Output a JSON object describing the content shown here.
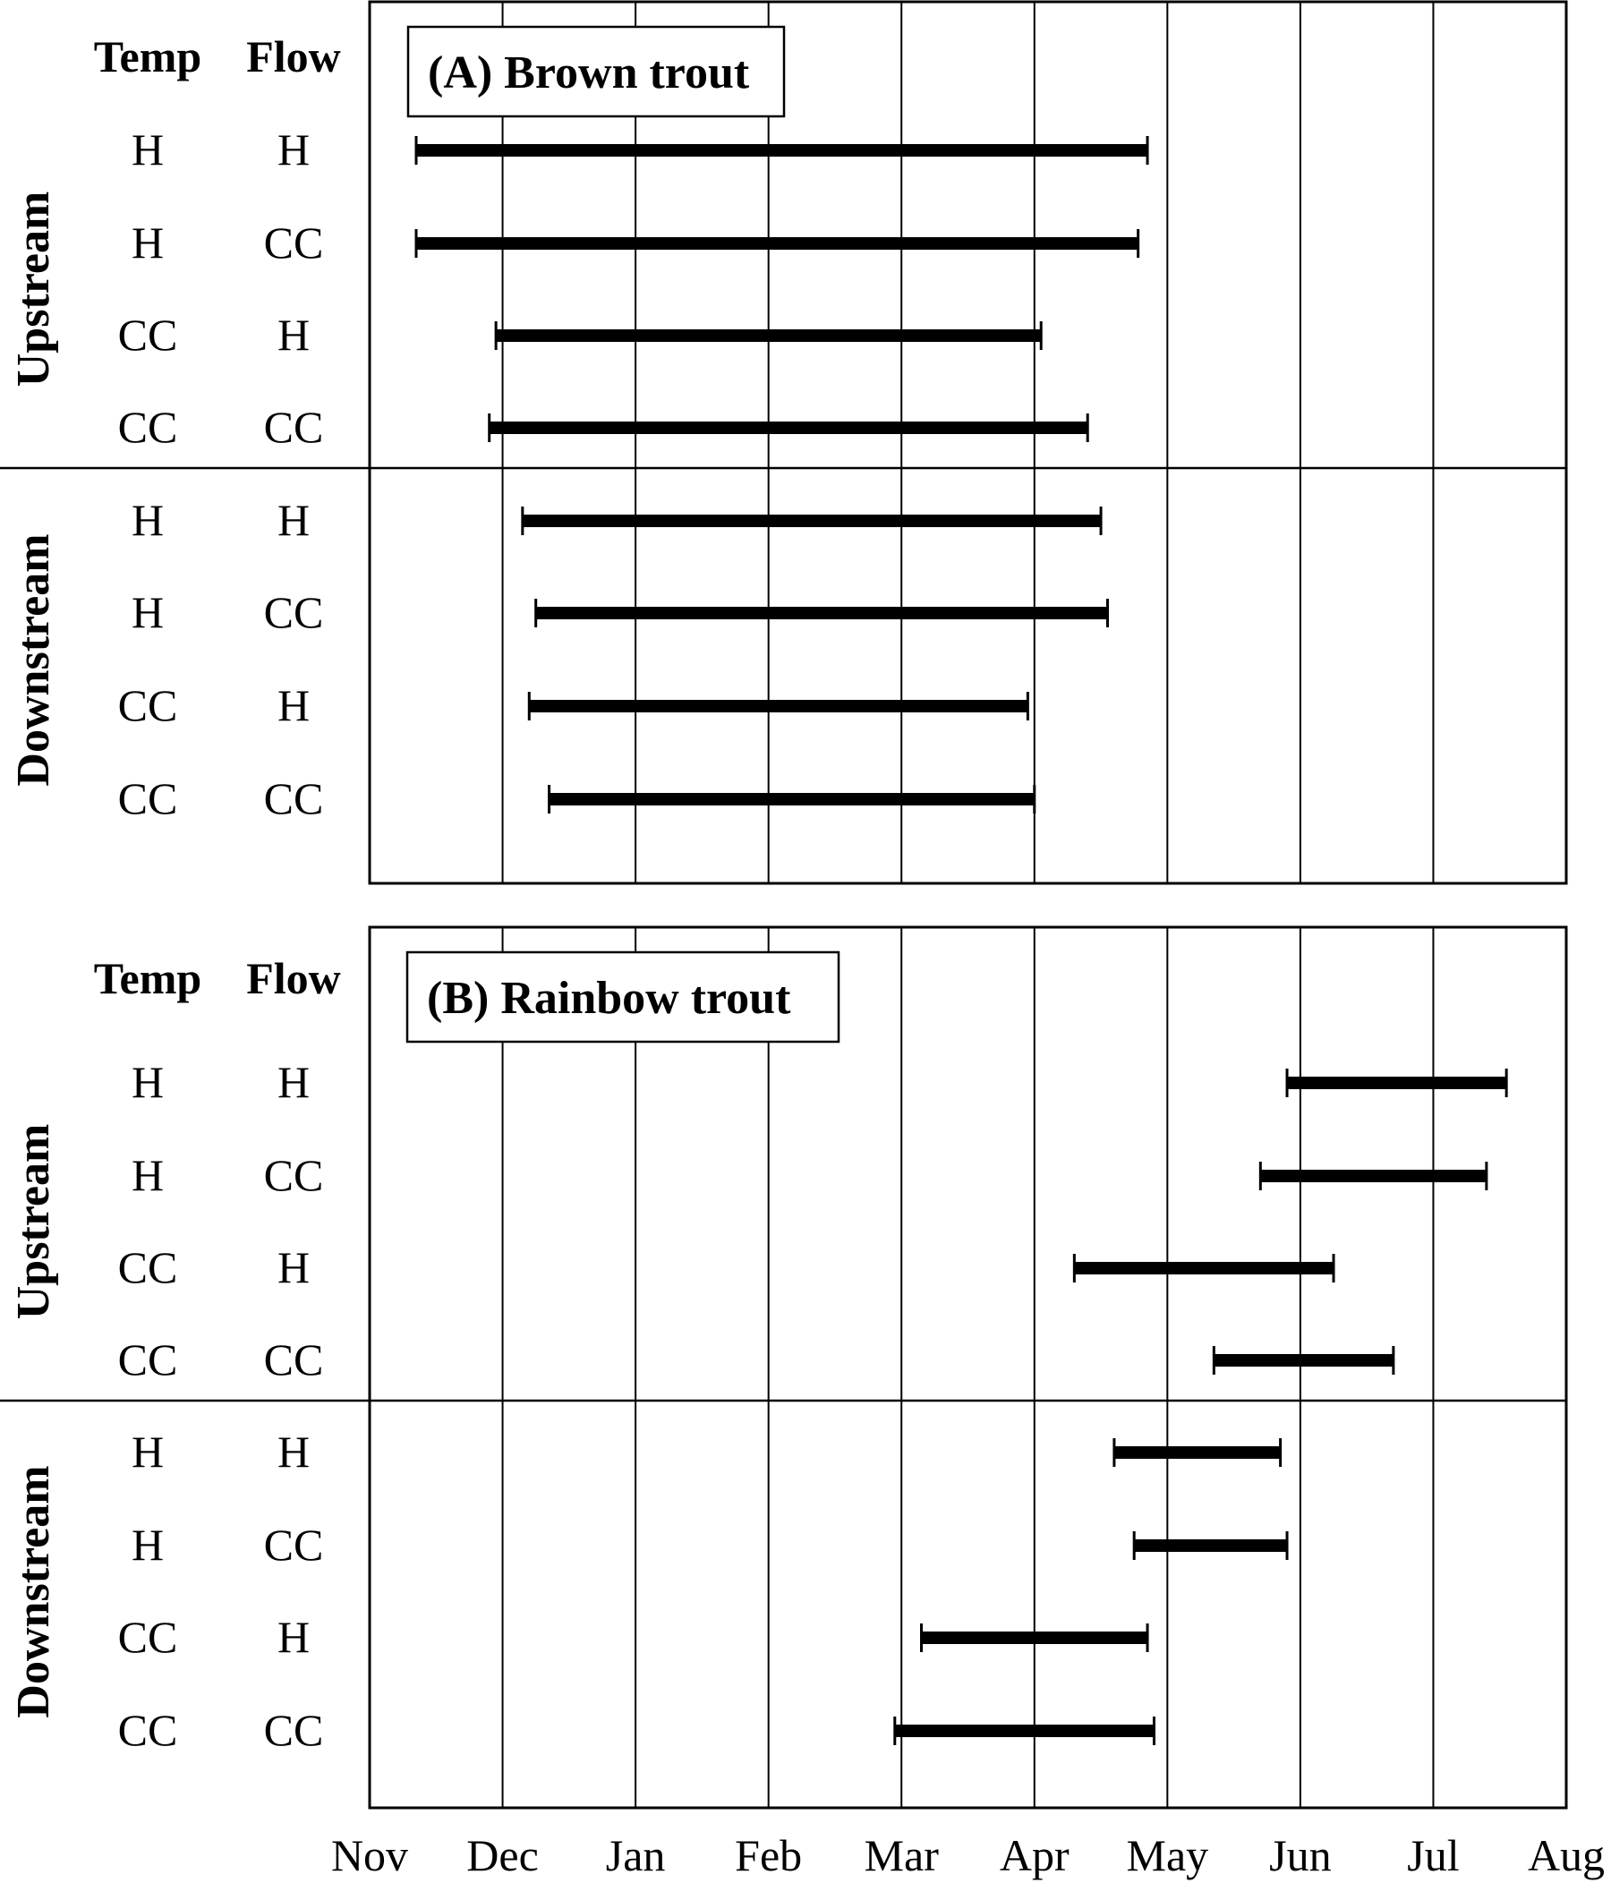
{
  "chart_data": {
    "type": "range-bar",
    "x_ticks": [
      "Nov",
      "Dec",
      "Jan",
      "Feb",
      "Mar",
      "Apr",
      "May",
      "Jun",
      "Jul",
      "Aug"
    ],
    "x_unit": "months from Nov 1",
    "xlim": [
      0,
      9
    ],
    "grid": "vertical",
    "column_headers": [
      "Temp",
      "Flow"
    ],
    "groups": [
      "Upstream",
      "Downstream"
    ],
    "panels": [
      {
        "title": "(A) Brown trout",
        "rows": [
          {
            "group": "Upstream",
            "temp": "H",
            "flow": "H",
            "start": 0.35,
            "end": 5.85
          },
          {
            "group": "Upstream",
            "temp": "H",
            "flow": "CC",
            "start": 0.35,
            "end": 5.78
          },
          {
            "group": "Upstream",
            "temp": "CC",
            "flow": "H",
            "start": 0.95,
            "end": 5.05
          },
          {
            "group": "Upstream",
            "temp": "CC",
            "flow": "CC",
            "start": 0.9,
            "end": 5.4
          },
          {
            "group": "Downstream",
            "temp": "H",
            "flow": "H",
            "start": 1.15,
            "end": 5.5
          },
          {
            "group": "Downstream",
            "temp": "H",
            "flow": "CC",
            "start": 1.25,
            "end": 5.55
          },
          {
            "group": "Downstream",
            "temp": "CC",
            "flow": "H",
            "start": 1.2,
            "end": 4.95
          },
          {
            "group": "Downstream",
            "temp": "CC",
            "flow": "CC",
            "start": 1.35,
            "end": 5.0
          }
        ]
      },
      {
        "title": "(B) Rainbow trout",
        "rows": [
          {
            "group": "Upstream",
            "temp": "H",
            "flow": "H",
            "start": 6.9,
            "end": 8.55
          },
          {
            "group": "Upstream",
            "temp": "H",
            "flow": "CC",
            "start": 6.7,
            "end": 8.4
          },
          {
            "group": "Upstream",
            "temp": "CC",
            "flow": "H",
            "start": 5.3,
            "end": 7.25
          },
          {
            "group": "Upstream",
            "temp": "CC",
            "flow": "CC",
            "start": 6.35,
            "end": 7.7
          },
          {
            "group": "Downstream",
            "temp": "H",
            "flow": "H",
            "start": 5.6,
            "end": 6.85
          },
          {
            "group": "Downstream",
            "temp": "H",
            "flow": "CC",
            "start": 5.75,
            "end": 6.9
          },
          {
            "group": "Downstream",
            "temp": "CC",
            "flow": "H",
            "start": 4.15,
            "end": 5.85
          },
          {
            "group": "Downstream",
            "temp": "CC",
            "flow": "CC",
            "start": 3.95,
            "end": 5.9
          }
        ]
      }
    ]
  }
}
